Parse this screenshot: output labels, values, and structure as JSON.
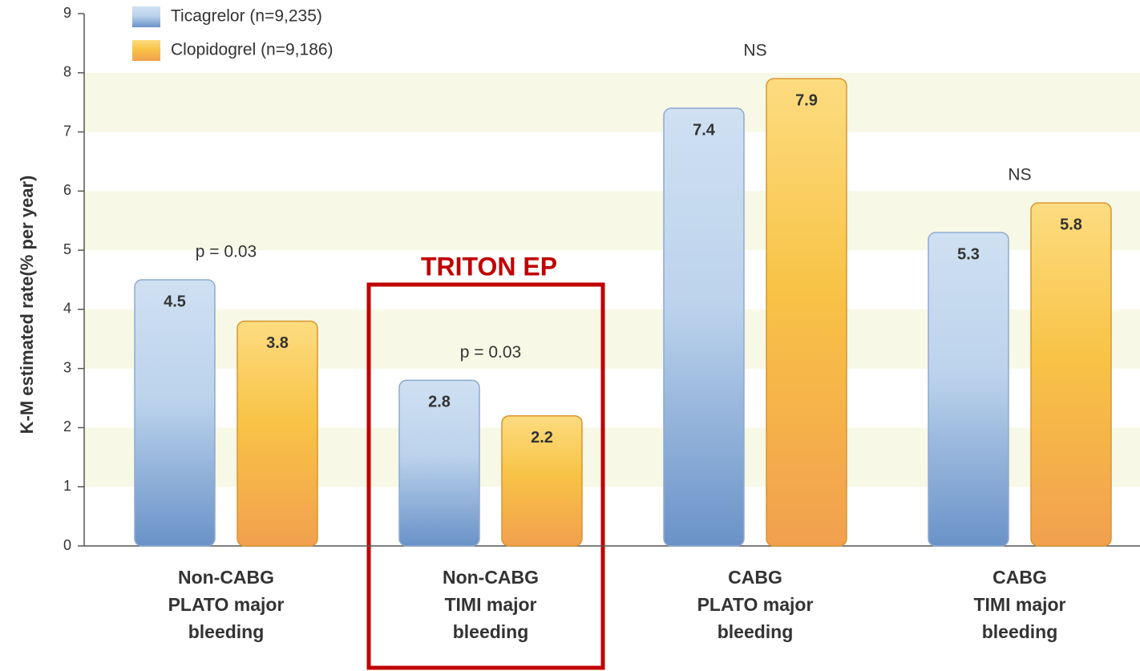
{
  "chart_data": {
    "type": "bar",
    "y_label": "K-M estimated rate(% per year)",
    "categories": [
      "Non-CABG\nPLATO major\nbleeding",
      "Non-CABG\nTIMI major\nbleeding",
      "CABG\nPLATO major\nbleeding",
      "CABG\nTIMI major\nbleeding"
    ],
    "series": [
      {
        "name": "Ticagrelor (n=9,235)",
        "color": "#6a92c8",
        "values": [
          4.5,
          2.8,
          7.4,
          5.3
        ]
      },
      {
        "name": "Clopidogrel (n=9,186)",
        "color": "#f2a04e",
        "values": [
          3.8,
          2.2,
          7.9,
          5.8
        ]
      }
    ],
    "annotations": [
      "p = 0.03",
      "p = 0.03",
      "NS",
      "NS"
    ],
    "highlight": "TRITON EP",
    "ylim": [
      0,
      9
    ],
    "yticks": [
      0,
      1,
      2,
      3,
      4,
      5,
      6,
      7,
      8,
      9
    ],
    "grid": "bands"
  }
}
